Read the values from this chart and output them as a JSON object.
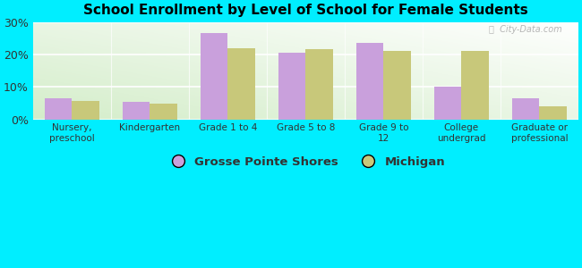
{
  "title": "School Enrollment by Level of School for Female Students",
  "categories": [
    "Nursery,\npreschool",
    "Kindergarten",
    "Grade 1 to 4",
    "Grade 5 to 8",
    "Grade 9 to\n12",
    "College\nundergrad",
    "Graduate or\nprofessional"
  ],
  "grosse_pointe_shores": [
    6.5,
    5.5,
    26.5,
    20.5,
    23.5,
    10.0,
    6.5
  ],
  "michigan": [
    5.8,
    4.8,
    22.0,
    21.5,
    21.0,
    21.0,
    4.0
  ],
  "color_gps": "#c9a0dc",
  "color_mi": "#c8c87a",
  "background_color": "#00eeff",
  "plot_bg": "#e8f5e2",
  "ylim": [
    0,
    30
  ],
  "yticks": [
    0,
    10,
    20,
    30
  ],
  "ytick_labels": [
    "0%",
    "10%",
    "20%",
    "30%"
  ],
  "legend_gps": "Grosse Pointe Shores",
  "legend_mi": "Michigan",
  "bar_width": 0.35
}
